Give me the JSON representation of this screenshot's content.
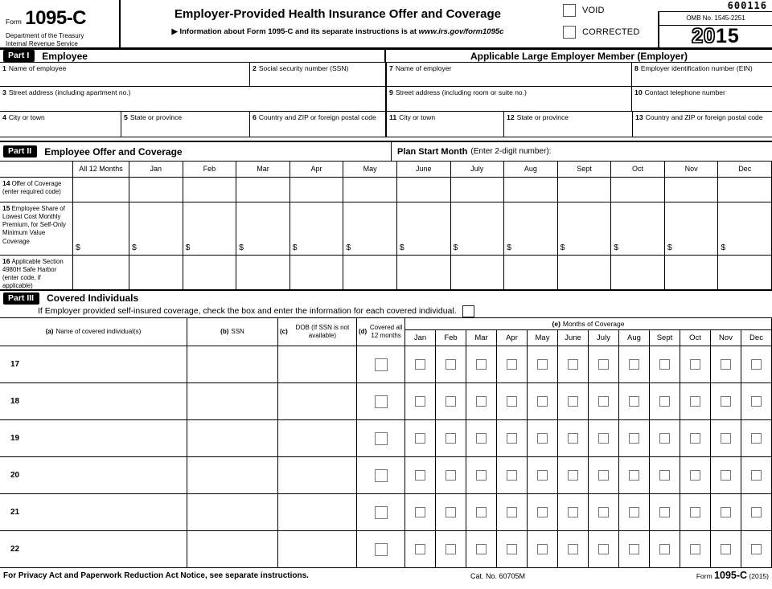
{
  "header": {
    "form_word": "Form",
    "form_number": "1095-C",
    "agency_line1": "Department of the Treasury",
    "agency_line2": "Internal Revenue Service",
    "title": "Employer-Provided Health Insurance Offer and Coverage",
    "info_prefix": "▶ Information about Form 1095-C and its separate instructions is at ",
    "info_url": "www.irs.gov/form1095c",
    "void_label": "VOID",
    "corrected_label": "CORRECTED",
    "serial": "600116",
    "omb": "OMB No. 1545-2251",
    "year_outline": "20",
    "year_bold": "15"
  },
  "part1": {
    "badge": "Part I",
    "title": "Employee",
    "employer_title": "Applicable Large Employer Member (Employer)",
    "f1": {
      "num": "1",
      "label": "Name of employee"
    },
    "f2": {
      "num": "2",
      "label": "Social security number (SSN)"
    },
    "f3": {
      "num": "3",
      "label": "Street address (including apartment no.)"
    },
    "f4": {
      "num": "4",
      "label": "City or town"
    },
    "f5": {
      "num": "5",
      "label": "State or province"
    },
    "f6": {
      "num": "6",
      "label": "Country and ZIP or foreign postal code"
    },
    "f7": {
      "num": "7",
      "label": "Name of employer"
    },
    "f8": {
      "num": "8",
      "label": "Employer identification number (EIN)"
    },
    "f9": {
      "num": "9",
      "label": "Street address (including room or suite no.)"
    },
    "f10": {
      "num": "10",
      "label": "Contact telephone number"
    },
    "f11": {
      "num": "11",
      "label": "City or town"
    },
    "f12": {
      "num": "12",
      "label": "State or province"
    },
    "f13": {
      "num": "13",
      "label": "Country and ZIP or foreign postal code"
    }
  },
  "part2": {
    "badge": "Part II",
    "title": "Employee Offer and Coverage",
    "plan_start_label": "Plan Start Month",
    "plan_start_note": "(Enter 2-digit number):",
    "columns": [
      "All 12 Months",
      "Jan",
      "Feb",
      "Mar",
      "Apr",
      "May",
      "June",
      "July",
      "Aug",
      "Sept",
      "Oct",
      "Nov",
      "Dec"
    ],
    "rows": [
      {
        "num": "14",
        "label": "Offer of Coverage (enter required code)",
        "cell_prefix": ""
      },
      {
        "num": "15",
        "label": "Employee Share of Lowest Cost Monthly Premium, for Self-Only Minimum Value Coverage",
        "cell_prefix": "$"
      },
      {
        "num": "16",
        "label": "Applicable Section 4980H Safe Harbor (enter code, if applicable)",
        "cell_prefix": ""
      }
    ]
  },
  "part3": {
    "badge": "Part III",
    "title": "Covered Individuals",
    "instruction": "If Employer provided self-insured coverage, check the box and enter the information for each covered individual.",
    "columns": {
      "a": {
        "num": "(a)",
        "label": "Name of covered individual(s)"
      },
      "b": {
        "num": "(b)",
        "label": "SSN"
      },
      "c": {
        "num": "(c)",
        "label": "DOB (If SSN is not available)"
      },
      "d": {
        "num": "(d)",
        "label": "Covered all 12 months"
      },
      "e": {
        "num": "(e)",
        "label": "Months of Coverage"
      }
    },
    "months": [
      "Jan",
      "Feb",
      "Mar",
      "Apr",
      "May",
      "June",
      "July",
      "Aug",
      "Sept",
      "Oct",
      "Nov",
      "Dec"
    ],
    "row_numbers": [
      "17",
      "18",
      "19",
      "20",
      "21",
      "22"
    ]
  },
  "footer": {
    "privacy": "For Privacy Act and Paperwork Reduction Act Notice, see separate instructions.",
    "cat": "Cat. No. 60705M",
    "form_word": "Form ",
    "form_number": "1095-C",
    "year": " (2015)"
  }
}
